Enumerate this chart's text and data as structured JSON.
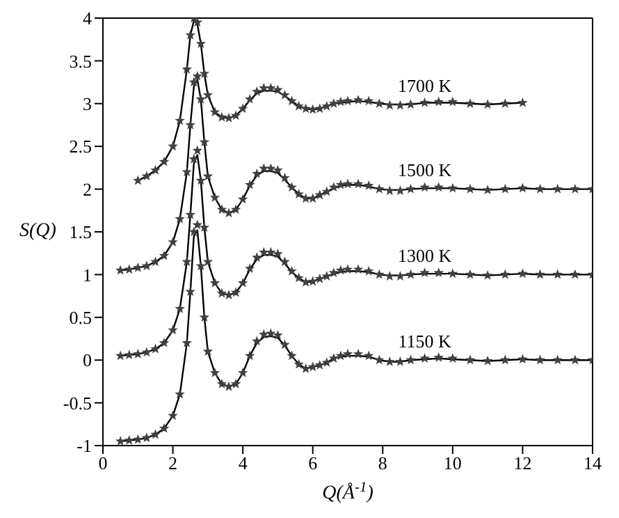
{
  "chart_data": {
    "type": "line",
    "xlabel": "Q(Å$^{-1}$)",
    "ylabel": "S(Q)",
    "xlim": [
      0,
      14
    ],
    "ylim": [
      -1,
      4
    ],
    "xticks": [
      0,
      2,
      4,
      6,
      8,
      10,
      12,
      14
    ],
    "yticks": [
      -1,
      -0.5,
      0,
      0.5,
      1,
      1.5,
      2,
      2.5,
      3,
      3.5,
      4
    ],
    "line_style": "solid",
    "x": [
      0.5,
      0.75,
      1,
      1.25,
      1.5,
      1.75,
      2,
      2.2,
      2.4,
      2.5,
      2.6,
      2.7,
      2.8,
      2.9,
      3,
      3.2,
      3.4,
      3.6,
      3.8,
      4,
      4.2,
      4.4,
      4.6,
      4.8,
      5,
      5.2,
      5.4,
      5.6,
      5.8,
      6,
      6.2,
      6.4,
      6.6,
      6.8,
      7,
      7.3,
      7.6,
      7.9,
      8.2,
      8.5,
      8.8,
      9.2,
      9.6,
      10,
      10.5,
      11,
      11.5,
      12,
      12.5,
      13,
      13.5,
      14
    ],
    "series": [
      {
        "type": "scatter",
        "marker": "star",
        "name": "1150 K",
        "color": "#404040",
        "values": [
          -0.95,
          -0.94,
          -0.93,
          -0.91,
          -0.87,
          -0.8,
          -0.65,
          -0.4,
          0.2,
          0.8,
          1.5,
          1.58,
          1.1,
          0.5,
          0.1,
          -0.15,
          -0.28,
          -0.31,
          -0.28,
          -0.15,
          0.05,
          0.22,
          0.3,
          0.31,
          0.29,
          0.18,
          0.05,
          -0.05,
          -0.1,
          -0.08,
          -0.06,
          -0.03,
          0.02,
          0.05,
          0.07,
          0.07,
          0.05,
          0,
          -0.02,
          -0.02,
          0,
          0.02,
          0.03,
          0.02,
          0,
          -0.01,
          0,
          0.01,
          0,
          0,
          0,
          0
        ]
      },
      {
        "marker": "none",
        "color": "#000000",
        "values": [
          -0.95,
          -0.94,
          -0.93,
          -0.91,
          -0.87,
          -0.8,
          -0.65,
          -0.4,
          0.2,
          0.8,
          1.45,
          1.52,
          1.1,
          0.5,
          0.1,
          -0.15,
          -0.28,
          -0.31,
          -0.28,
          -0.15,
          0.05,
          0.2,
          0.27,
          0.28,
          0.26,
          0.17,
          0.05,
          -0.05,
          -0.1,
          -0.08,
          -0.06,
          -0.03,
          0.02,
          0.04,
          0.05,
          0.05,
          0.04,
          0,
          -0.02,
          -0.02,
          0,
          0.01,
          0.02,
          0.01,
          0,
          -0.01,
          0,
          0.01,
          0,
          0,
          0,
          0
        ]
      },
      {
        "type": "scatter",
        "marker": "star",
        "name": "1300 K",
        "color": "#404040",
        "values": [
          0.05,
          0.06,
          0.07,
          0.09,
          0.13,
          0.2,
          0.35,
          0.6,
          1.15,
          1.7,
          2.35,
          2.45,
          2.1,
          1.55,
          1.15,
          0.9,
          0.78,
          0.76,
          0.79,
          0.9,
          1.07,
          1.2,
          1.26,
          1.26,
          1.24,
          1.15,
          1.04,
          0.96,
          0.91,
          0.92,
          0.95,
          0.98,
          1.02,
          1.05,
          1.06,
          1.06,
          1.04,
          1,
          0.98,
          0.98,
          1,
          1.02,
          1.02,
          1.01,
          1,
          0.99,
          1,
          1.01,
          1,
          1,
          1,
          1
        ]
      },
      {
        "marker": "none",
        "color": "#000000",
        "values": [
          0.05,
          0.06,
          0.07,
          0.09,
          0.13,
          0.2,
          0.35,
          0.6,
          1.15,
          1.7,
          2.3,
          2.4,
          2.1,
          1.55,
          1.15,
          0.9,
          0.78,
          0.76,
          0.79,
          0.9,
          1.06,
          1.18,
          1.23,
          1.23,
          1.21,
          1.13,
          1.03,
          0.96,
          0.91,
          0.92,
          0.95,
          0.98,
          1.01,
          1.03,
          1.04,
          1.04,
          1.03,
          1,
          0.99,
          0.99,
          1,
          1.01,
          1.01,
          1.01,
          1,
          0.99,
          1,
          1.01,
          1,
          1,
          1,
          1
        ]
      },
      {
        "type": "scatter",
        "marker": "star",
        "name": "1500 K",
        "color": "#404040",
        "values": [
          1.05,
          1.06,
          1.08,
          1.1,
          1.15,
          1.22,
          1.38,
          1.65,
          2.2,
          2.75,
          3.25,
          3.32,
          3.05,
          2.55,
          2.15,
          1.9,
          1.76,
          1.72,
          1.76,
          1.88,
          2.05,
          2.18,
          2.24,
          2.24,
          2.22,
          2.13,
          2.02,
          1.94,
          1.89,
          1.89,
          1.93,
          1.97,
          2.02,
          2.05,
          2.06,
          2.06,
          2.04,
          2,
          1.98,
          1.98,
          2,
          2.02,
          2.02,
          2.01,
          2,
          1.99,
          2,
          2.01,
          2,
          2,
          2,
          2
        ]
      },
      {
        "marker": "none",
        "color": "#000000",
        "values": [
          1.05,
          1.06,
          1.08,
          1.1,
          1.15,
          1.22,
          1.38,
          1.65,
          2.2,
          2.75,
          3.2,
          3.28,
          3.05,
          2.55,
          2.15,
          1.9,
          1.76,
          1.72,
          1.76,
          1.88,
          2.04,
          2.16,
          2.21,
          2.21,
          2.19,
          2.11,
          2.02,
          1.94,
          1.89,
          1.89,
          1.93,
          1.97,
          2.01,
          2.04,
          2.05,
          2.05,
          2.03,
          2,
          1.99,
          1.99,
          2,
          2.01,
          2.01,
          2.01,
          2,
          1.99,
          2,
          2.01,
          2,
          2,
          2,
          2
        ]
      },
      {
        "type": "scatter",
        "marker": "star",
        "name": "1700 K",
        "color": "#404040",
        "x": [
          1,
          1.25,
          1.5,
          1.75,
          2,
          2.2,
          2.4,
          2.5,
          2.6,
          2.7,
          2.8,
          2.9,
          3,
          3.2,
          3.4,
          3.6,
          3.8,
          4,
          4.2,
          4.4,
          4.6,
          4.8,
          5,
          5.2,
          5.4,
          5.6,
          5.8,
          6,
          6.2,
          6.4,
          6.6,
          6.8,
          7,
          7.3,
          7.6,
          7.9,
          8.2,
          8.5,
          8.8,
          9.2,
          9.6,
          10,
          10.5,
          11,
          11.5,
          12
        ],
        "values": [
          2.1,
          2.15,
          2.22,
          2.32,
          2.5,
          2.8,
          3.4,
          3.8,
          4,
          3.95,
          3.7,
          3.35,
          3.1,
          2.9,
          2.84,
          2.83,
          2.86,
          2.94,
          3.05,
          3.14,
          3.18,
          3.18,
          3.16,
          3.1,
          3.03,
          2.97,
          2.94,
          2.93,
          2.94,
          2.97,
          3,
          3.02,
          3.03,
          3.04,
          3.03,
          3,
          2.98,
          2.98,
          2.99,
          3.01,
          3.02,
          3.02,
          3,
          2.99,
          3,
          3.01
        ]
      },
      {
        "marker": "none",
        "color": "#000000",
        "x": [
          1,
          1.25,
          1.5,
          1.75,
          2,
          2.2,
          2.4,
          2.5,
          2.6,
          2.7,
          2.8,
          2.9,
          3,
          3.2,
          3.4,
          3.6,
          3.8,
          4,
          4.2,
          4.4,
          4.6,
          4.8,
          5,
          5.2,
          5.4,
          5.6,
          5.8,
          6,
          6.2,
          6.4,
          6.6,
          6.8,
          7,
          7.3,
          7.6,
          7.9,
          8.2,
          8.5,
          8.8,
          9.2,
          9.6,
          10,
          10.5,
          11,
          11.5,
          12
        ],
        "values": [
          2.1,
          2.15,
          2.22,
          2.32,
          2.5,
          2.8,
          3.4,
          3.8,
          3.97,
          3.93,
          3.7,
          3.35,
          3.1,
          2.9,
          2.84,
          2.83,
          2.86,
          2.94,
          3.04,
          3.12,
          3.15,
          3.15,
          3.14,
          3.09,
          3.03,
          2.97,
          2.94,
          2.93,
          2.94,
          2.97,
          3,
          3.01,
          3.02,
          3.03,
          3.02,
          3,
          2.99,
          2.99,
          2.99,
          3.01,
          3.01,
          3.01,
          3,
          2.99,
          3,
          3.01
        ]
      }
    ]
  }
}
